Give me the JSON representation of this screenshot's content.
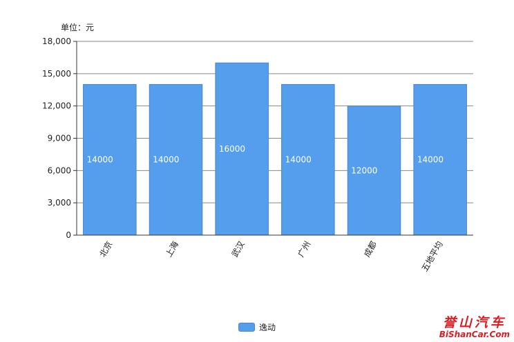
{
  "unit_label": "单位：元",
  "legend_label": "逸动",
  "watermark": {
    "chinese": "誉山汽车",
    "english": "BiShanCar.Com"
  },
  "colors": {
    "bar": "#559ded",
    "bar_border": "#4a86c8",
    "grid": "#888888",
    "watermark": "#d81f26"
  },
  "chart_data": {
    "type": "bar",
    "categories": [
      "北京",
      "上海",
      "武汉",
      "广州",
      "成都",
      "五地平均"
    ],
    "series": [
      {
        "name": "逸动",
        "values": [
          14000,
          14000,
          16000,
          14000,
          12000,
          14000
        ]
      }
    ],
    "data_labels": [
      "14000",
      "14000",
      "16000",
      "14000",
      "12000",
      "14000"
    ],
    "ylim": [
      0,
      18000
    ],
    "yticks": [
      0,
      3000,
      6000,
      9000,
      12000,
      15000,
      18000
    ],
    "ytick_labels": [
      "0",
      "3,000",
      "6,000",
      "9,000",
      "12,000",
      "15,000",
      "18,000"
    ],
    "grid": true,
    "legend_position": "bottom-center"
  }
}
